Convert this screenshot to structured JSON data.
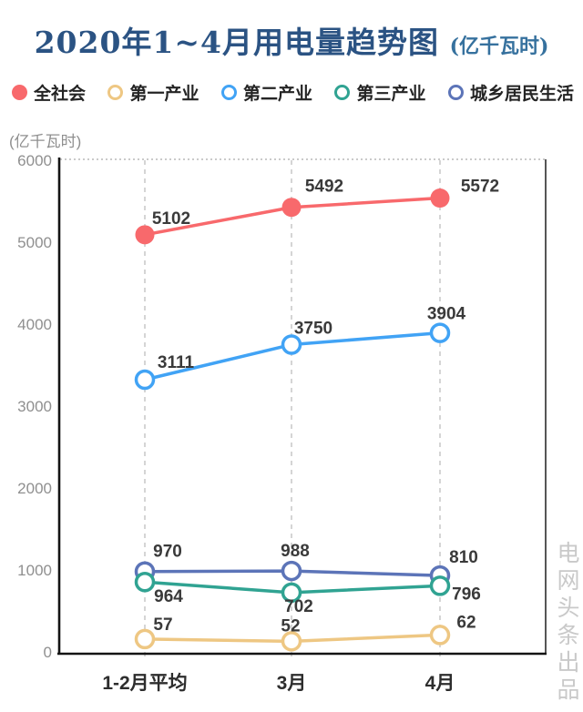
{
  "title": {
    "main": "2020年1~4月用电量趋势图",
    "unit": "(亿千瓦时)"
  },
  "y_axis_unit": "(亿千瓦时)",
  "watermark": "电网头条出品",
  "chart_data": {
    "type": "line",
    "categories": [
      "1-2月平均",
      "3月",
      "4月"
    ],
    "series": [
      {
        "name": "全社会",
        "color": "#f8696c",
        "marker": "filled",
        "values": [
          5102,
          5492,
          5572
        ]
      },
      {
        "name": "第一产业",
        "color": "#eec783",
        "marker": "ring",
        "values": [
          57,
          52,
          62
        ]
      },
      {
        "name": "第二产业",
        "color": "#41a3f5",
        "marker": "ring",
        "values": [
          3111,
          3750,
          3904
        ]
      },
      {
        "name": "第三产业",
        "color": "#30a392",
        "marker": "ring",
        "values": [
          964,
          702,
          796
        ]
      },
      {
        "name": "城乡居民生活",
        "color": "#5c74b8",
        "marker": "ring",
        "values": [
          970,
          988,
          810
        ]
      }
    ],
    "ylabel": "(亿千瓦时)",
    "ylim": [
      0,
      6000
    ],
    "yticks": [
      0,
      1000,
      2000,
      3000,
      4000,
      5000,
      6000
    ],
    "grid": "vertical-dashed-columns, dotted-top-border",
    "legend_position": "top"
  }
}
